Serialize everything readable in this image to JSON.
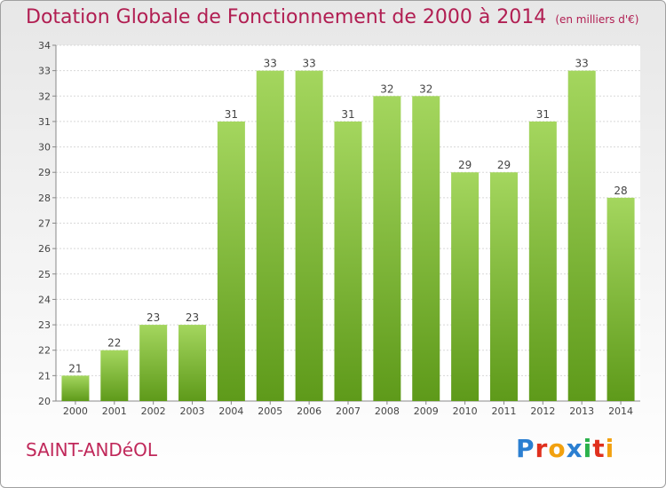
{
  "header": {
    "title": "Dotation Globale de Fonctionnement de 2000 à 2014",
    "unit": "(en milliers d'€)"
  },
  "commune": "SAINT-ANDéOL",
  "logo": {
    "letters": [
      "P",
      "r",
      "o",
      "x",
      "i",
      "t",
      "i"
    ],
    "colors": [
      "#2b7fd1",
      "#e0301e",
      "#f2a10f",
      "#2b7fd1",
      "#2bb24c",
      "#e0301e",
      "#f2a10f"
    ]
  },
  "colors": {
    "bar_light": "#a4d65e",
    "bar_dark": "#5e9a1a",
    "title": "#b11e52"
  },
  "chart_data": {
    "type": "bar",
    "title": "Dotation Globale de Fonctionnement de 2000 à 2014",
    "categories": [
      "2000",
      "2001",
      "2002",
      "2003",
      "2004",
      "2005",
      "2006",
      "2007",
      "2008",
      "2009",
      "2010",
      "2011",
      "2012",
      "2013",
      "2014"
    ],
    "values": [
      21,
      22,
      23,
      23,
      31,
      33,
      33,
      31,
      32,
      32,
      29,
      29,
      31,
      33,
      28
    ],
    "ylim": [
      20,
      34
    ],
    "yticks": [
      20,
      21,
      22,
      23,
      24,
      25,
      26,
      27,
      28,
      29,
      30,
      31,
      32,
      33,
      34
    ],
    "grid": true,
    "xlabel": "",
    "ylabel": ""
  }
}
